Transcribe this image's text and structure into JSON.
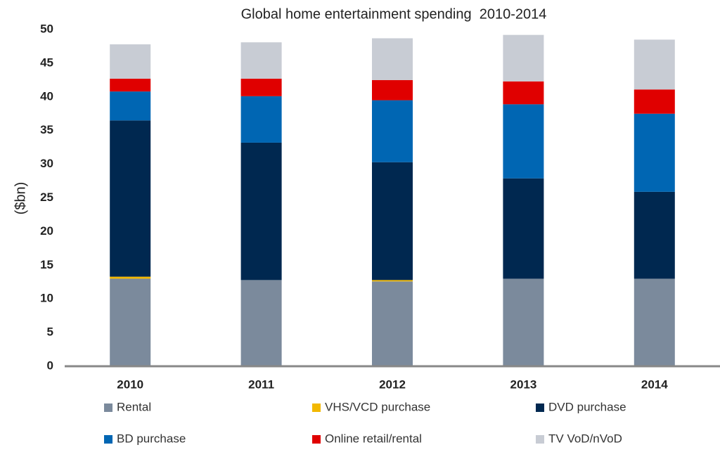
{
  "chart_data": {
    "type": "stacked_bar",
    "title": "Global home entertainment spending  2010-2014",
    "y_label": "($bn)",
    "categories": [
      "2010",
      "2011",
      "2012",
      "2013",
      "2014"
    ],
    "series": [
      {
        "name": "Rental",
        "color": "#7b8a9c",
        "values": [
          13.0,
          12.8,
          12.6,
          13.0,
          13.0
        ]
      },
      {
        "name": "VHS/VCD purchase",
        "color": "#f2b800",
        "values": [
          0.3,
          0,
          0.2,
          0,
          0
        ]
      },
      {
        "name": "DVD purchase",
        "color": "#002850",
        "values": [
          23.2,
          20.4,
          17.5,
          14.9,
          12.9
        ]
      },
      {
        "name": "BD purchase",
        "color": "#0066b3",
        "values": [
          4.3,
          6.9,
          9.2,
          11.0,
          11.6
        ]
      },
      {
        "name": "Online retail/rental",
        "color": "#e00000",
        "values": [
          1.9,
          2.6,
          3.0,
          3.4,
          3.6
        ]
      },
      {
        "name": "TV VoD/nVoD",
        "color": "#c8ccd4",
        "values": [
          5.1,
          5.4,
          6.2,
          6.9,
          7.4
        ]
      }
    ],
    "ylim": [
      0,
      50
    ],
    "yticks": [
      0,
      5,
      10,
      15,
      20,
      25,
      30,
      35,
      40,
      45,
      50
    ],
    "grid": false
  }
}
